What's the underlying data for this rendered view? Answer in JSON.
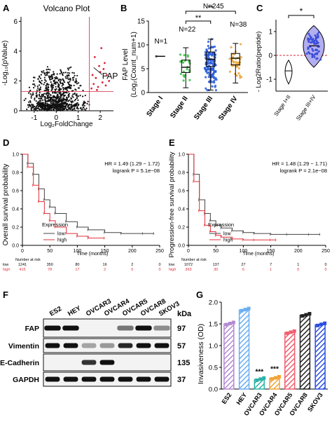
{
  "panels": {
    "A": {
      "letter": "A",
      "title": "Volcano Plot",
      "xlabel": "Log₂FoldChange",
      "ylabel": "-Log₁₀(pValue)",
      "annotation": "FAP"
    },
    "B": {
      "letter": "B",
      "ylabel_1": "FAP Level",
      "ylabel_2": "(Log₂(Count_num+1)",
      "significance": [
        "**",
        "**"
      ],
      "n_labels": [
        "N=1",
        "N=22",
        "N=245",
        "N=38"
      ]
    },
    "C": {
      "letter": "C",
      "ylabel": "- Log2Ratio(peptide)",
      "significance": "*"
    },
    "D": {
      "letter": "D",
      "ylabel": "Overall survival probability",
      "xlabel": "Time (months)",
      "hr": "HR = 1.49  (1.29 − 1.72)",
      "logrank": "logrank P = 5.1e−08",
      "legend_title": "Expression",
      "legend": [
        "low",
        "high"
      ],
      "risk_title": "Number at risk"
    },
    "E": {
      "letter": "E",
      "ylabel": "Progression-free survival probability",
      "xlabel": "Time (months)",
      "hr": "HR = 1.48  (1.29 − 1.71)",
      "logrank": "logrank P = 2.1e−08",
      "legend_title": "Expression",
      "legend": [
        "low",
        "high"
      ],
      "risk_title": "Number at risk"
    },
    "F": {
      "letter": "F",
      "cell_lines": [
        "ES2",
        "HEY",
        "OVCAR3",
        "OVCAR4",
        "OVCAR5",
        "OVCAR8",
        "SKOV3"
      ],
      "kda_label": "kDa",
      "rows": [
        {
          "name": "FAP",
          "kda": "97"
        },
        {
          "name": "Vimentin",
          "kda": "57"
        },
        {
          "name": "E-Cadherin",
          "kda": "135"
        },
        {
          "name": "GAPDH",
          "kda": "37"
        }
      ]
    },
    "G": {
      "letter": "G",
      "ylabel": "Invasiveness (OD)",
      "significance": [
        "***",
        "***"
      ]
    }
  },
  "colors": {
    "low": "#444444",
    "high": "#e0303a",
    "red": "#d9263a"
  },
  "chart_data": [
    {
      "panel": "A",
      "type": "scatter",
      "title": "Volcano Plot",
      "xlabel": "Log₂FoldChange",
      "ylabel": "-Log₁₀(pValue)",
      "xlim": [
        -1.6,
        2.6
      ],
      "ylim": [
        0,
        6.3
      ],
      "xticks": [
        -1,
        0,
        1,
        2
      ],
      "yticks": [
        0,
        2,
        4,
        6
      ],
      "thresholds": {
        "x": 1.5,
        "y": 1.3
      },
      "highlighted": [
        {
          "label": "FAP",
          "x": 1.7,
          "y": 2.9
        }
      ],
      "red_points": [
        [
          1.6,
          1.5
        ],
        [
          1.7,
          1.8
        ],
        [
          1.8,
          2.2
        ],
        [
          1.9,
          1.6
        ],
        [
          2.0,
          2.6
        ],
        [
          2.1,
          1.9
        ],
        [
          2.2,
          3.2
        ],
        [
          2.3,
          2.4
        ],
        [
          1.75,
          3.6
        ],
        [
          1.95,
          3.0
        ],
        [
          2.05,
          4.2
        ],
        [
          2.25,
          1.7
        ],
        [
          1.65,
          2.4
        ],
        [
          2.4,
          2.0
        ],
        [
          1.85,
          1.4
        ],
        [
          2.15,
          2.8
        ]
      ]
    },
    {
      "panel": "B",
      "type": "box",
      "ylabel": "FAP Level (Log₂(Count_num+1)",
      "ylim": [
        0,
        15
      ],
      "yticks": [
        0,
        5,
        10,
        15
      ],
      "categories": [
        "Stage I",
        "Stage II",
        "Stage III",
        "Stage IV"
      ],
      "n": [
        1,
        22,
        245,
        38
      ],
      "boxes": [
        {
          "min": 7.6,
          "q1": 7.6,
          "median": 7.6,
          "q3": 7.6,
          "max": 7.6
        },
        {
          "min": 1.0,
          "q1": 4.2,
          "median": 5.3,
          "q3": 6.8,
          "max": 9.4
        },
        {
          "min": 0.5,
          "q1": 5.5,
          "median": 7.0,
          "q3": 8.5,
          "max": 11.2
        },
        {
          "min": 2.0,
          "q1": 5.8,
          "median": 7.2,
          "q3": 8.2,
          "max": 10.3
        }
      ],
      "colors": [
        "#222222",
        "#35c23e",
        "#2a5cd9",
        "#e8a33a"
      ]
    },
    {
      "panel": "C",
      "type": "violin",
      "ylabel": "- Log2Ratio(peptide)",
      "ylim": [
        -1.5,
        1.5
      ],
      "yticks": [
        -1,
        0,
        1
      ],
      "categories": [
        "Stage I+II",
        "Stage III+IV"
      ],
      "groups": [
        {
          "min": -1.2,
          "median": -0.65,
          "max": -0.2
        },
        {
          "min": -0.5,
          "median": 0.4,
          "max": 1.25
        }
      ]
    },
    {
      "panel": "D",
      "type": "line",
      "xlabel": "Time (months)",
      "ylabel": "Overall survival probability",
      "xlim": [
        0,
        250
      ],
      "ylim": [
        0,
        1
      ],
      "xticks": [
        0,
        50,
        100,
        150,
        200,
        250
      ],
      "yticks": [
        0,
        0.2,
        0.4,
        0.6,
        0.8,
        1.0
      ],
      "series": [
        {
          "name": "low",
          "x": [
            0,
            10,
            20,
            30,
            40,
            50,
            60,
            80,
            100,
            120,
            150,
            180,
            220,
            240
          ],
          "y": [
            1.0,
            0.9,
            0.78,
            0.62,
            0.5,
            0.42,
            0.35,
            0.26,
            0.2,
            0.17,
            0.14,
            0.13,
            0.13,
            0.13
          ]
        },
        {
          "name": "high",
          "x": [
            0,
            10,
            20,
            30,
            40,
            50,
            60,
            80,
            100,
            120,
            150
          ],
          "y": [
            1.0,
            0.86,
            0.66,
            0.48,
            0.35,
            0.27,
            0.2,
            0.13,
            0.1,
            0.08,
            0.08
          ]
        }
      ],
      "at_risk_times": [
        0,
        50,
        100,
        150,
        200,
        250
      ],
      "at_risk": {
        "low": [
          "1241",
          "350",
          "80",
          "16",
          "2",
          "0"
        ],
        "high": [
          "415",
          "78",
          "17",
          "2",
          "0",
          "0"
        ]
      }
    },
    {
      "panel": "E",
      "type": "line",
      "xlabel": "Time (months)",
      "ylabel": "Progression-free survival probability",
      "xlim": [
        0,
        250
      ],
      "ylim": [
        0,
        1
      ],
      "xticks": [
        0,
        50,
        100,
        150,
        200,
        250
      ],
      "yticks": [
        0,
        0.2,
        0.4,
        0.6,
        0.8,
        1.0
      ],
      "series": [
        {
          "name": "low",
          "x": [
            0,
            10,
            20,
            30,
            40,
            50,
            60,
            80,
            100,
            120,
            150,
            180,
            220,
            240
          ],
          "y": [
            1.0,
            0.78,
            0.5,
            0.35,
            0.27,
            0.22,
            0.19,
            0.16,
            0.14,
            0.13,
            0.12,
            0.12,
            0.12,
            0.12
          ]
        },
        {
          "name": "high",
          "x": [
            0,
            10,
            20,
            30,
            40,
            50,
            60,
            80,
            100,
            120,
            150,
            160
          ],
          "y": [
            1.0,
            0.7,
            0.38,
            0.22,
            0.15,
            0.11,
            0.09,
            0.07,
            0.06,
            0.06,
            0.06,
            0.06
          ]
        }
      ],
      "at_risk_times": [
        0,
        50,
        100,
        150,
        200,
        250
      ],
      "at_risk": {
        "low": [
          "1072",
          "137",
          "27",
          "7",
          "1",
          "0"
        ],
        "high": [
          "363",
          "30",
          "6",
          "1",
          "0",
          "0"
        ]
      }
    },
    {
      "panel": "G",
      "type": "bar",
      "ylabel": "Invasiveness (OD)",
      "ylim": [
        0,
        2.0
      ],
      "yticks": [
        0.0,
        0.5,
        1.0,
        1.5,
        2.0
      ],
      "categories": [
        "ES2",
        "HEY",
        "OVCAR3",
        "OVCAR4",
        "OVCAR5",
        "OVCAR8",
        "SKOV3"
      ],
      "values": [
        1.5,
        1.82,
        0.22,
        0.25,
        1.3,
        1.7,
        1.48
      ],
      "colors": [
        "#b48ad2",
        "#6aaef2",
        "#2bb3a8",
        "#f2a33a",
        "#f0606f",
        "#222222",
        "#2a4ee0"
      ]
    }
  ]
}
